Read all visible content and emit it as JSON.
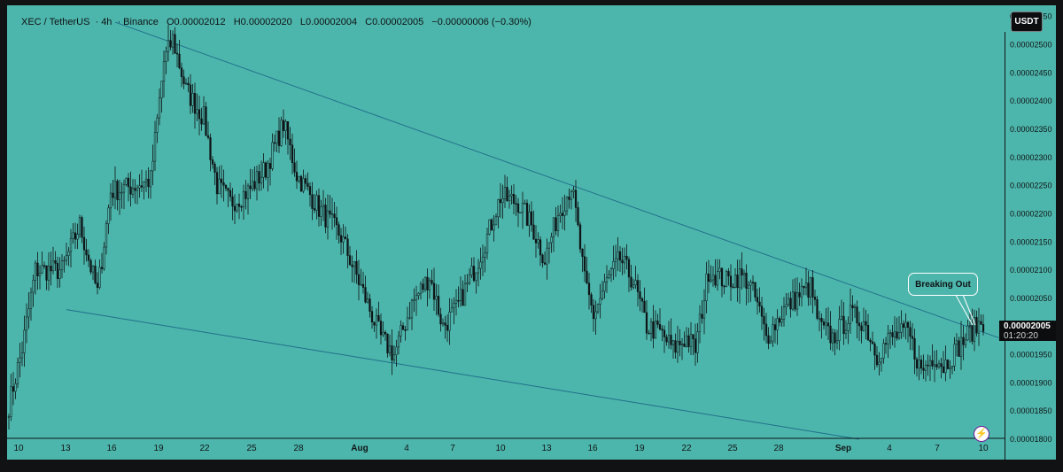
{
  "header": {
    "symbol": "XEC / TetherUS",
    "interval": "4h",
    "exchange": "Binance",
    "open": "O0.00002012",
    "high": "H0.00002020",
    "low": "L0.00002004",
    "close": "C0.00002005",
    "change": "−0.00000006 (−0.30%)"
  },
  "currency_button": "USDT",
  "price_label": {
    "price": "0.00002005",
    "countdown": "01:20:20"
  },
  "annotation": "Breaking Out",
  "colors": {
    "background": "#4db6ac",
    "candle": "#0e1214",
    "trendline": "#1f6f8b",
    "axis_text": "#101415"
  },
  "chart_data": {
    "type": "candlestick",
    "ylim": [
      1.8e-05,
      2.57e-05
    ],
    "x_tick_labels": [
      "10",
      "13",
      "16",
      "19",
      "22",
      "25",
      "28",
      "Aug",
      "4",
      "7",
      "10",
      "13",
      "16",
      "19",
      "22",
      "25",
      "28",
      "Sep",
      "4",
      "7",
      "10"
    ],
    "y_tick_labels": [
      "0.00002550",
      "0.00002500",
      "0.00002450",
      "0.00002400",
      "0.00002350",
      "0.00002300",
      "0.00002250",
      "0.00002200",
      "0.00002150",
      "0.00002100",
      "0.00002050",
      "0.00002000",
      "0.00001950",
      "0.00001900",
      "0.00001850",
      "0.00001800"
    ],
    "y_tick_values": [
      2.55e-05,
      2.5e-05,
      2.45e-05,
      2.4e-05,
      2.35e-05,
      2.3e-05,
      2.25e-05,
      2.2e-05,
      2.15e-05,
      2.1e-05,
      2.05e-05,
      2e-05,
      1.95e-05,
      1.9e-05,
      1.85e-05,
      1.8e-05
    ],
    "close_anchors": [
      [
        0,
        1.86e-05
      ],
      [
        6,
        1.96e-05
      ],
      [
        12,
        2.1e-05
      ],
      [
        24,
        2.1e-05
      ],
      [
        32,
        2.18e-05
      ],
      [
        40,
        2.06e-05
      ],
      [
        46,
        2.24e-05
      ],
      [
        57,
        2.25e-05
      ],
      [
        64,
        2.26e-05
      ],
      [
        70,
        2.47e-05
      ],
      [
        74,
        2.51e-05
      ],
      [
        80,
        2.42e-05
      ],
      [
        88,
        2.37e-05
      ],
      [
        94,
        2.25e-05
      ],
      [
        100,
        2.22e-05
      ],
      [
        108,
        2.24e-05
      ],
      [
        116,
        2.28e-05
      ],
      [
        124,
        2.36e-05
      ],
      [
        130,
        2.27e-05
      ],
      [
        140,
        2.21e-05
      ],
      [
        150,
        2.16e-05
      ],
      [
        160,
        2.06e-05
      ],
      [
        168,
        1.98e-05
      ],
      [
        174,
        1.95e-05
      ],
      [
        182,
        2.04e-05
      ],
      [
        190,
        2.09e-05
      ],
      [
        196,
        2e-05
      ],
      [
        202,
        2.03e-05
      ],
      [
        210,
        2.1e-05
      ],
      [
        216,
        2.16e-05
      ],
      [
        222,
        2.23e-05
      ],
      [
        230,
        2.22e-05
      ],
      [
        236,
        2.18e-05
      ],
      [
        242,
        2.12e-05
      ],
      [
        248,
        2.2e-05
      ],
      [
        254,
        2.25e-05
      ],
      [
        256,
        2.2e-05
      ],
      [
        260,
        2.08e-05
      ],
      [
        264,
        2.02e-05
      ],
      [
        270,
        2.08e-05
      ],
      [
        276,
        2.12e-05
      ],
      [
        282,
        2.08e-05
      ],
      [
        288,
        2e-05
      ],
      [
        294,
        1.99e-05
      ],
      [
        300,
        1.96e-05
      ],
      [
        306,
        1.98e-05
      ],
      [
        310,
        1.96e-05
      ],
      [
        316,
        2.1e-05
      ],
      [
        324,
        2.08e-05
      ],
      [
        330,
        2.09e-05
      ],
      [
        334,
        2.08e-05
      ],
      [
        338,
        2.04e-05
      ],
      [
        342,
        1.98e-05
      ],
      [
        350,
        2.03e-05
      ],
      [
        358,
        2.06e-05
      ],
      [
        362,
        2.07e-05
      ],
      [
        366,
        2e-05
      ],
      [
        372,
        1.98e-05
      ],
      [
        380,
        2.02e-05
      ],
      [
        386,
        2.01e-05
      ],
      [
        392,
        1.95e-05
      ],
      [
        398,
        1.98e-05
      ],
      [
        406,
        1.99e-05
      ],
      [
        412,
        1.92e-05
      ],
      [
        418,
        1.95e-05
      ],
      [
        422,
        1.93e-05
      ],
      [
        428,
        1.96e-05
      ],
      [
        434,
        1.99e-05
      ],
      [
        440,
        2.01e-05
      ]
    ],
    "trendlines": [
      {
        "name": "upper",
        "from": [
          48,
          2.54e-05
        ],
        "to": [
          447,
          1.98e-05
        ]
      },
      {
        "name": "lower",
        "from": [
          26,
          2.03e-05
        ],
        "to": [
          384,
          1.8e-05
        ]
      }
    ]
  }
}
